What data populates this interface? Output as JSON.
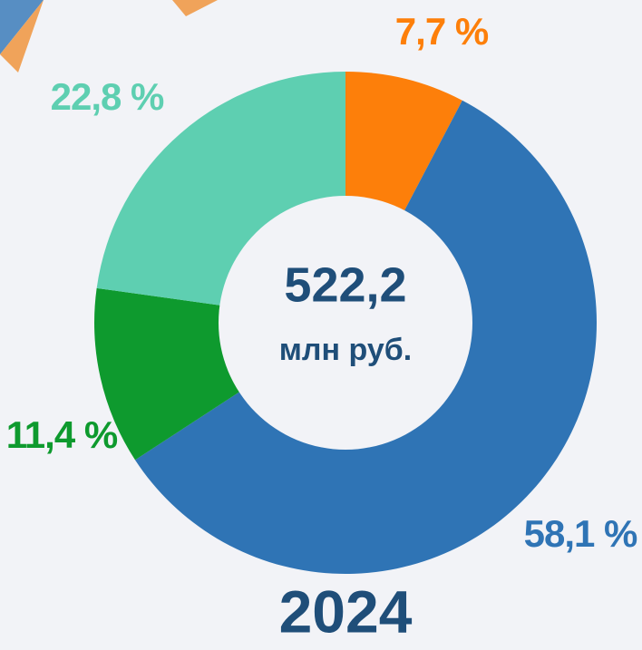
{
  "chart_data": {
    "type": "donut",
    "title": "2024",
    "center_value": "522,2",
    "center_unit": "млн руб.",
    "values": [
      7.7,
      58.1,
      11.4,
      22.8
    ],
    "value_labels": [
      "7,7 %",
      "58,1 %",
      "11,4 %",
      "22,8 %"
    ],
    "colors": [
      "#fd7f0a",
      "#2f74b5",
      "#0e9a2e",
      "#5ecfb1"
    ]
  }
}
